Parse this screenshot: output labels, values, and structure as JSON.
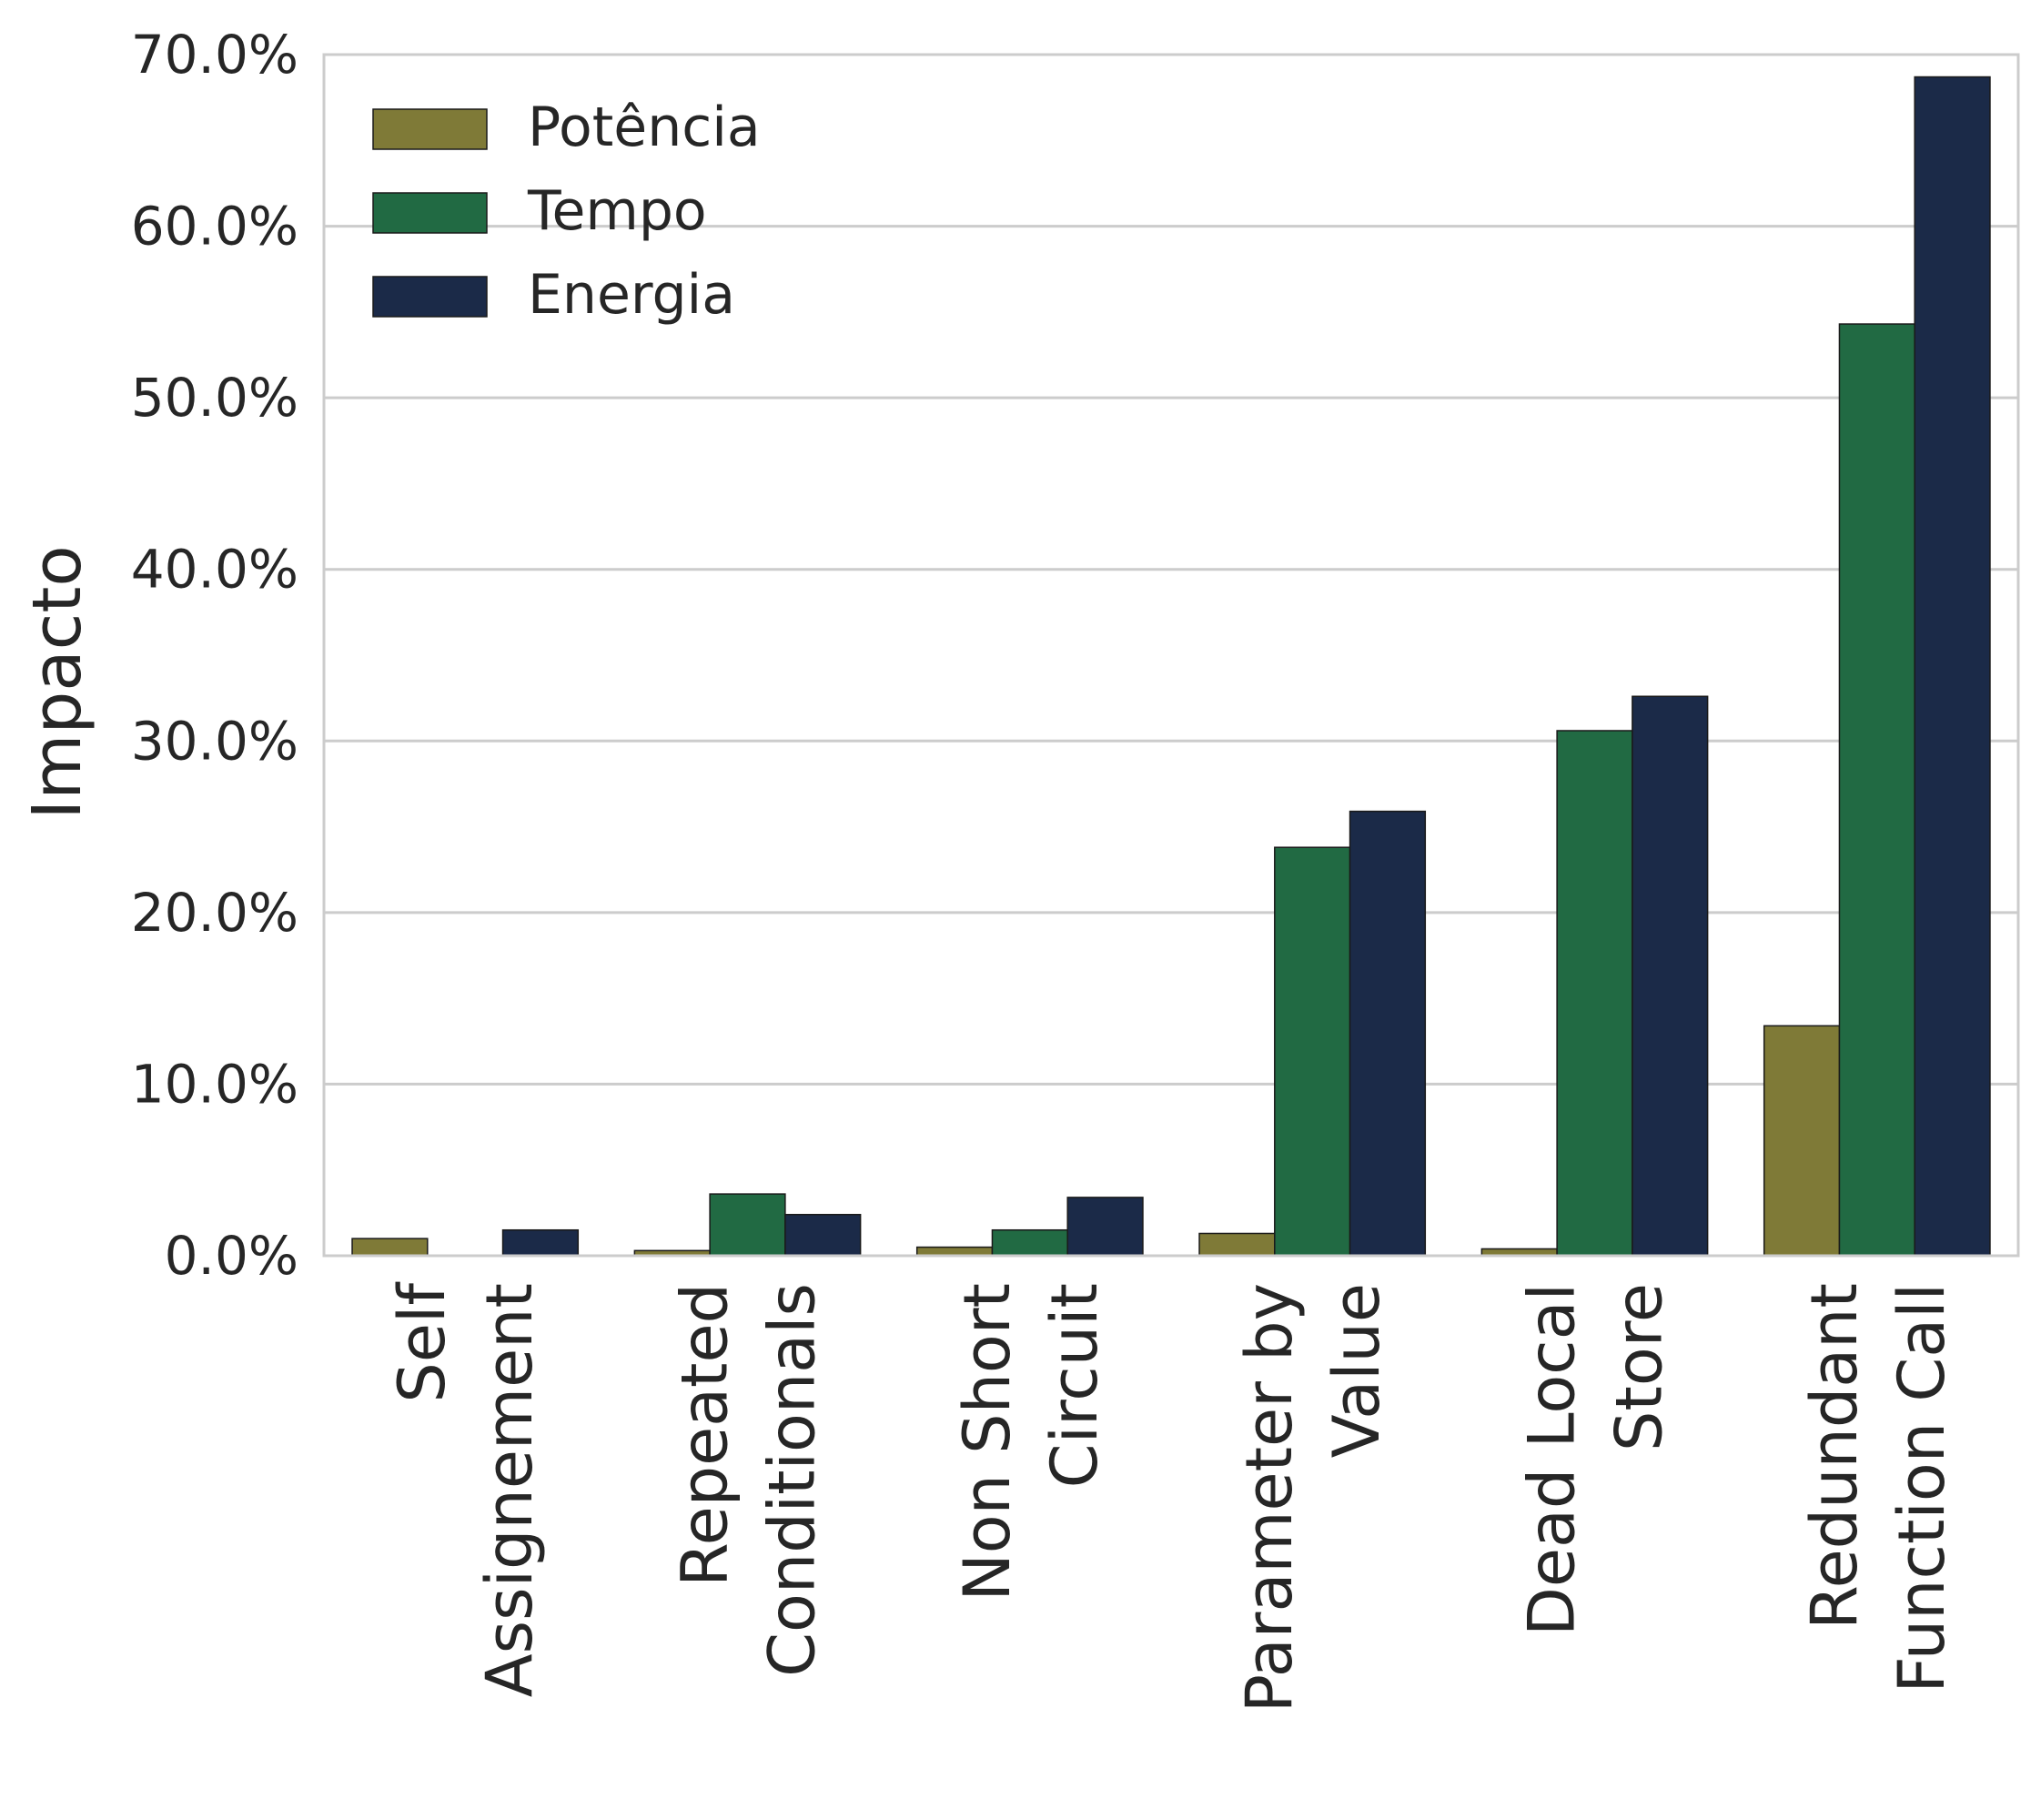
{
  "chart_data": {
    "type": "bar",
    "title": "",
    "xlabel": "",
    "ylabel": "Impacto",
    "ylim": [
      0,
      70
    ],
    "yticks": [
      0,
      10,
      20,
      30,
      40,
      50,
      60,
      70
    ],
    "ytick_labels": [
      "0.0%",
      "10.0%",
      "20.0%",
      "30.0%",
      "40.0%",
      "50.0%",
      "60.0%",
      "70.0%"
    ],
    "grid": "horizontal",
    "legend_position": "top-left",
    "categories": [
      [
        "Self",
        "Assignement"
      ],
      [
        "Repeated",
        "Conditionals"
      ],
      [
        "Non Short",
        "Circuit"
      ],
      [
        "Parameter by",
        "Value"
      ],
      [
        "Dead Local",
        "Store"
      ],
      [
        "Redundant",
        "Function Call"
      ]
    ],
    "series": [
      {
        "name": "Potência",
        "color": "#7f7a37",
        "values": [
          1.0,
          0.3,
          0.5,
          1.3,
          0.4,
          13.4
        ]
      },
      {
        "name": "Tempo",
        "color": "#216a43",
        "values": [
          0.0,
          3.6,
          1.5,
          23.8,
          30.6,
          54.3
        ]
      },
      {
        "name": "Energia",
        "color": "#1b2a48",
        "values": [
          1.5,
          2.4,
          3.4,
          25.9,
          32.6,
          68.7
        ]
      }
    ]
  }
}
